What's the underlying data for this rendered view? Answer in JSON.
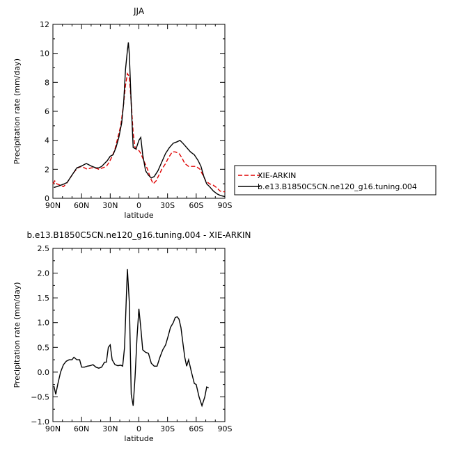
{
  "chart_data": [
    {
      "type": "line",
      "title": "JJA",
      "xlabel": "latitude",
      "ylabel": "Precipitation rate (mm/day)",
      "xlim": [
        90,
        -90
      ],
      "ylim": [
        0,
        12
      ],
      "x_ticks": [
        90,
        60,
        30,
        0,
        -30,
        -60,
        -90
      ],
      "x_tick_labels": [
        "90N",
        "60N",
        "30N",
        "0",
        "30S",
        "60S",
        "90S"
      ],
      "y_ticks": [
        0,
        2,
        4,
        6,
        8,
        10,
        12
      ],
      "y_tick_labels": [
        "0",
        "2",
        "4",
        "6",
        "8",
        "10",
        "12"
      ],
      "grid": false,
      "legend": "right",
      "series": [
        {
          "name": "XIE-ARKIN",
          "color": "#e00000",
          "dash": true,
          "points": [
            [
              90,
              1.0
            ],
            [
              88,
              1.2
            ],
            [
              86,
              1.0
            ],
            [
              82,
              0.9
            ],
            [
              79,
              0.8
            ],
            [
              76,
              1.0
            ],
            [
              72,
              1.4
            ],
            [
              68,
              1.8
            ],
            [
              64,
              2.1
            ],
            [
              60,
              2.2
            ],
            [
              57,
              2.1
            ],
            [
              54,
              2.0
            ],
            [
              50,
              2.1
            ],
            [
              46,
              2.1
            ],
            [
              42,
              2.0
            ],
            [
              38,
              2.1
            ],
            [
              34,
              2.2
            ],
            [
              31,
              2.5
            ],
            [
              28,
              2.9
            ],
            [
              25,
              3.4
            ],
            [
              22,
              4.2
            ],
            [
              19,
              5.0
            ],
            [
              16,
              6.5
            ],
            [
              14,
              7.8
            ],
            [
              12,
              8.6
            ],
            [
              10,
              8.4
            ],
            [
              8,
              6.6
            ],
            [
              6,
              4.5
            ],
            [
              4,
              3.5
            ],
            [
              2,
              3.3
            ],
            [
              0,
              3.3
            ],
            [
              -2,
              3.1
            ],
            [
              -5,
              2.6
            ],
            [
              -9,
              2.0
            ],
            [
              -12,
              1.4
            ],
            [
              -15,
              1.0
            ],
            [
              -18,
              1.2
            ],
            [
              -21,
              1.6
            ],
            [
              -24,
              2.0
            ],
            [
              -28,
              2.4
            ],
            [
              -31,
              2.8
            ],
            [
              -35,
              3.2
            ],
            [
              -38,
              3.2
            ],
            [
              -42,
              3.1
            ],
            [
              -45,
              2.8
            ],
            [
              -48,
              2.4
            ],
            [
              -52,
              2.2
            ],
            [
              -56,
              2.2
            ],
            [
              -60,
              2.2
            ],
            [
              -64,
              2.0
            ],
            [
              -67,
              1.6
            ],
            [
              -70,
              1.2
            ],
            [
              -74,
              1.0
            ],
            [
              -78,
              0.9
            ],
            [
              -82,
              0.7
            ],
            [
              -85,
              0.5
            ],
            [
              -88,
              0.45
            ],
            [
              -90,
              0.45
            ]
          ]
        },
        {
          "name": "b.e13.B1850C5CN.ne120_g16.tuning.004",
          "color": "#000000",
          "dash": false,
          "points": [
            [
              89,
              0.75
            ],
            [
              86,
              0.8
            ],
            [
              82,
              0.9
            ],
            [
              78,
              1.0
            ],
            [
              75,
              1.1
            ],
            [
              72,
              1.4
            ],
            [
              68,
              1.8
            ],
            [
              65,
              2.1
            ],
            [
              61,
              2.2
            ],
            [
              58,
              2.3
            ],
            [
              55,
              2.4
            ],
            [
              52,
              2.3
            ],
            [
              49,
              2.2
            ],
            [
              45,
              2.1
            ],
            [
              42,
              2.1
            ],
            [
              39,
              2.2
            ],
            [
              36,
              2.4
            ],
            [
              33,
              2.6
            ],
            [
              30,
              2.9
            ],
            [
              27,
              3.0
            ],
            [
              24,
              3.5
            ],
            [
              21,
              4.2
            ],
            [
              18,
              5.2
            ],
            [
              16,
              6.5
            ],
            [
              14,
              8.9
            ],
            [
              12,
              10.2
            ],
            [
              11,
              10.75
            ],
            [
              10,
              9.9
            ],
            [
              8,
              6.5
            ],
            [
              6,
              3.5
            ],
            [
              3,
              3.4
            ],
            [
              0,
              4.0
            ],
            [
              -2,
              4.2
            ],
            [
              -4,
              3.0
            ],
            [
              -7,
              1.9
            ],
            [
              -10,
              1.6
            ],
            [
              -13,
              1.4
            ],
            [
              -16,
              1.5
            ],
            [
              -20,
              1.9
            ],
            [
              -24,
              2.5
            ],
            [
              -28,
              3.1
            ],
            [
              -32,
              3.5
            ],
            [
              -36,
              3.8
            ],
            [
              -40,
              3.9
            ],
            [
              -43,
              4.0
            ],
            [
              -46,
              3.8
            ],
            [
              -50,
              3.5
            ],
            [
              -54,
              3.2
            ],
            [
              -58,
              3.0
            ],
            [
              -62,
              2.6
            ],
            [
              -65,
              2.2
            ],
            [
              -68,
              1.5
            ],
            [
              -71,
              1.0
            ],
            [
              -74,
              0.8
            ],
            [
              -78,
              0.5
            ],
            [
              -82,
              0.3
            ],
            [
              -85,
              0.2
            ],
            [
              -88,
              0.15
            ],
            [
              -90,
              0.12
            ]
          ]
        }
      ]
    },
    {
      "type": "line",
      "title": "b.e13.B1850C5CN.ne120_g16.tuning.004 - XIE-ARKIN",
      "xlabel": "latitude",
      "ylabel": "Precipitation rate (mm/day)",
      "xlim": [
        90,
        -90
      ],
      "ylim": [
        -1.0,
        2.5
      ],
      "x_ticks": [
        90,
        60,
        30,
        0,
        -30,
        -60,
        -90
      ],
      "x_tick_labels": [
        "90N",
        "60N",
        "30N",
        "0",
        "30S",
        "60S",
        "90S"
      ],
      "y_ticks": [
        -1.0,
        -0.5,
        0.0,
        0.5,
        1.0,
        1.5,
        2.0,
        2.5
      ],
      "y_tick_labels": [
        "−1.0",
        "−0.5",
        "0.0",
        "0.5",
        "1.0",
        "1.5",
        "2.0",
        "2.5"
      ],
      "grid": false,
      "series": [
        {
          "color": "#000000",
          "dash": false,
          "points": [
            [
              89,
              -0.28
            ],
            [
              87,
              -0.45
            ],
            [
              85,
              -0.25
            ],
            [
              82,
              0.0
            ],
            [
              79,
              0.15
            ],
            [
              76,
              0.22
            ],
            [
              73,
              0.25
            ],
            [
              70,
              0.25
            ],
            [
              68,
              0.3
            ],
            [
              65,
              0.25
            ],
            [
              62,
              0.25
            ],
            [
              60,
              0.1
            ],
            [
              57,
              0.1
            ],
            [
              54,
              0.12
            ],
            [
              51,
              0.13
            ],
            [
              48,
              0.15
            ],
            [
              45,
              0.1
            ],
            [
              42,
              0.08
            ],
            [
              39,
              0.1
            ],
            [
              36,
              0.2
            ],
            [
              34,
              0.2
            ],
            [
              32,
              0.5
            ],
            [
              30,
              0.55
            ],
            [
              28,
              0.25
            ],
            [
              25,
              0.15
            ],
            [
              22,
              0.13
            ],
            [
              19,
              0.14
            ],
            [
              17,
              0.12
            ],
            [
              15,
              0.5
            ],
            [
              13,
              1.6
            ],
            [
              12,
              2.08
            ],
            [
              10,
              1.4
            ],
            [
              8,
              -0.45
            ],
            [
              6,
              -0.68
            ],
            [
              4,
              -0.1
            ],
            [
              2,
              0.7
            ],
            [
              0,
              1.28
            ],
            [
              -2,
              0.9
            ],
            [
              -4,
              0.45
            ],
            [
              -7,
              0.4
            ],
            [
              -10,
              0.38
            ],
            [
              -13,
              0.18
            ],
            [
              -16,
              0.12
            ],
            [
              -19,
              0.12
            ],
            [
              -22,
              0.3
            ],
            [
              -25,
              0.45
            ],
            [
              -28,
              0.55
            ],
            [
              -31,
              0.75
            ],
            [
              -33,
              0.9
            ],
            [
              -36,
              1.0
            ],
            [
              -38,
              1.1
            ],
            [
              -40,
              1.12
            ],
            [
              -42,
              1.07
            ],
            [
              -44,
              0.9
            ],
            [
              -46,
              0.6
            ],
            [
              -48,
              0.3
            ],
            [
              -50,
              0.12
            ],
            [
              -52,
              0.25
            ],
            [
              -55,
              0.0
            ],
            [
              -58,
              -0.23
            ],
            [
              -60,
              -0.25
            ],
            [
              -63,
              -0.5
            ],
            [
              -66,
              -0.68
            ],
            [
              -69,
              -0.5
            ],
            [
              -71,
              -0.3
            ],
            [
              -73,
              -0.32
            ]
          ]
        }
      ]
    }
  ],
  "legend_entries": [
    {
      "label": "XIE-ARKIN",
      "color": "#e00000",
      "dash": true
    },
    {
      "label": "b.e13.B1850C5CN.ne120_g16.tuning.004",
      "color": "#000000",
      "dash": false
    }
  ]
}
